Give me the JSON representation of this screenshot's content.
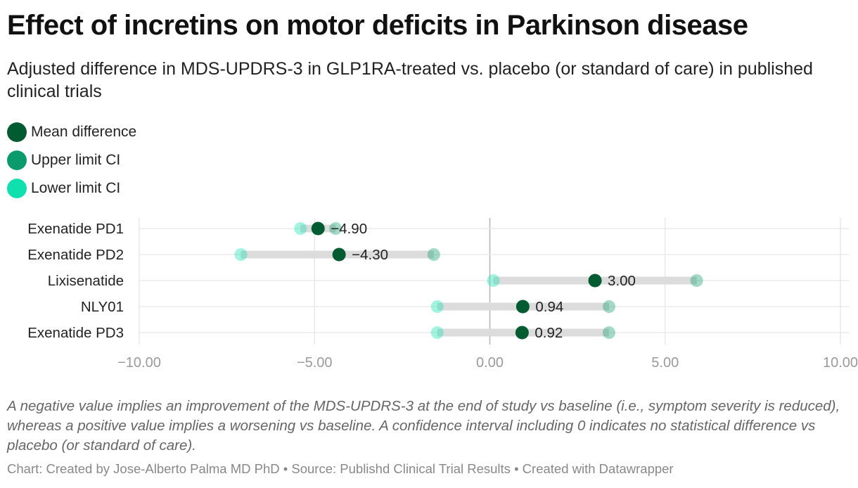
{
  "title": "Effect of incretins on motor deficits in Parkinson disease",
  "subtitle": "Adjusted difference in MDS-UPDRS-3 in GLP1RA-treated vs. placebo (or standard of care) in published clinical trials",
  "legend": [
    {
      "label": "Mean difference",
      "color": "#035b31"
    },
    {
      "label": "Upper limit CI",
      "color": "#0b9a6c"
    },
    {
      "label": "Lower limit CI",
      "color": "#0fe0ae"
    }
  ],
  "note": "A negative value implies an improvement of the MDS-UPDRS-3 at the end of study vs baseline (i.e., symptom severity is reduced), whereas a positive value implies a worsening vs baseline. A confidence interval including 0 indicates no statistical difference vs placebo (or standard of care).",
  "credit": "Chart: Created by Jose-Alberto Palma MD PhD • Source: Publishd Clinical Trial Results • Created with Datawrapper",
  "chart_data": {
    "type": "dot-range",
    "xlim": [
      -10,
      10
    ],
    "xticks": [
      -10,
      -5,
      0,
      5,
      10
    ],
    "xtick_labels": [
      "−10.00",
      "−5.00",
      "0.00",
      "5.00",
      "10.00"
    ],
    "grid": true,
    "colors": {
      "mean": "#035b31",
      "upper": "#0b9a6c",
      "lower": "#0fe0ae",
      "range_bar": "#dcdcdc"
    },
    "rows": [
      {
        "label": "Exenatide PD1",
        "mean": -4.9,
        "upper": -4.4,
        "lower": -5.4,
        "mean_label": "−4.90"
      },
      {
        "label": "Exenatide PD2",
        "mean": -4.3,
        "upper": -1.6,
        "lower": -7.1,
        "mean_label": "−4.30"
      },
      {
        "label": "Lixisenatide",
        "mean": 3.0,
        "upper": 5.9,
        "lower": 0.1,
        "mean_label": "3.00"
      },
      {
        "label": "NLY01",
        "mean": 0.94,
        "upper": 3.4,
        "lower": -1.5,
        "mean_label": "0.94"
      },
      {
        "label": "Exenatide PD3",
        "mean": 0.92,
        "upper": 3.4,
        "lower": -1.5,
        "mean_label": "0.92"
      }
    ]
  }
}
